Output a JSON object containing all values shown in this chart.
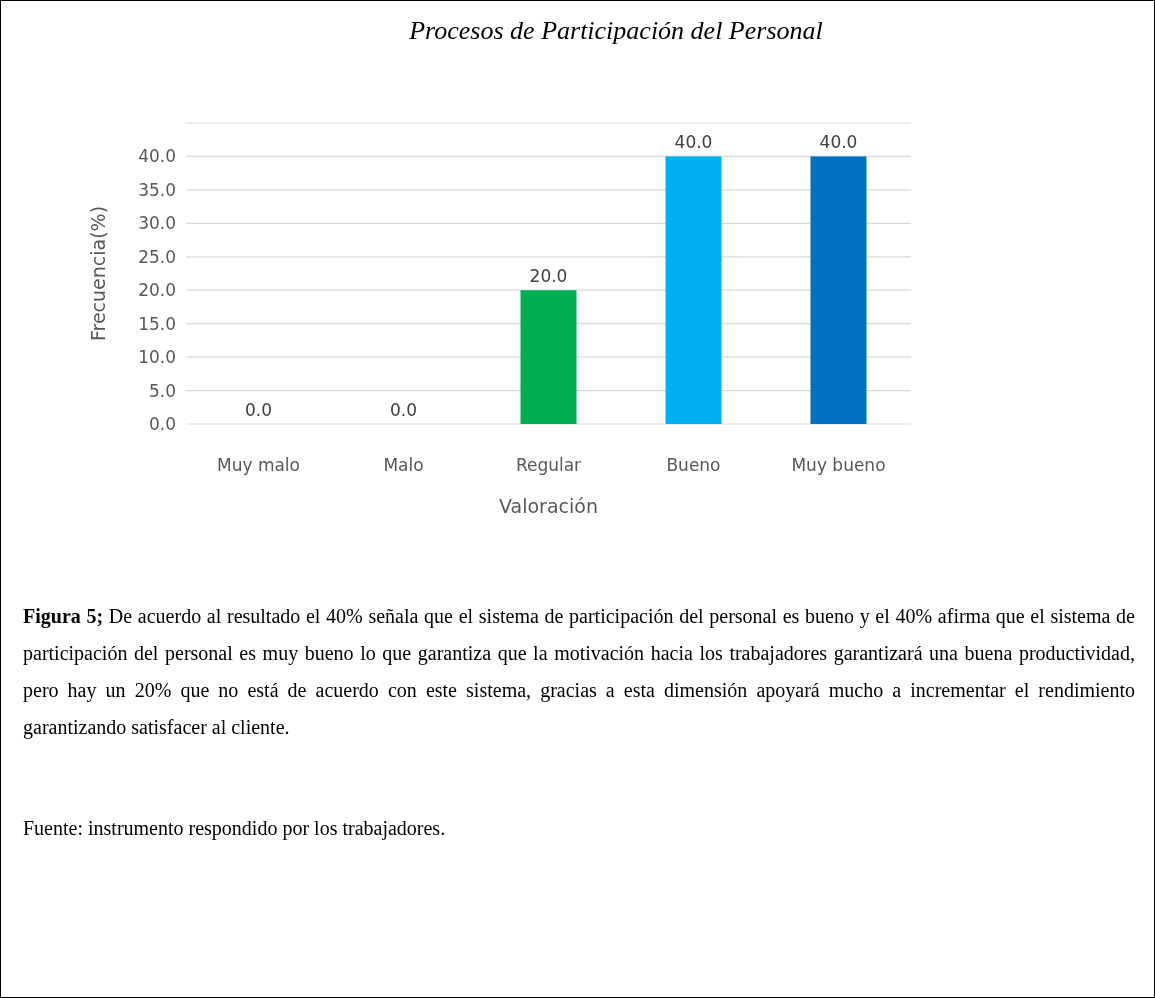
{
  "chart_data": {
    "type": "bar",
    "title": "Procesos de Participación del Personal",
    "xlabel": "Valoración",
    "ylabel": "Frecuencia(%)",
    "categories": [
      "Muy malo",
      "Malo",
      "Regular",
      "Bueno",
      "Muy bueno"
    ],
    "values": [
      0,
      0,
      20,
      40,
      40
    ],
    "colors": [
      "#c00000",
      "#bf9000",
      "#00b050",
      "#00b0f0",
      "#0070c0"
    ],
    "value_labels": [
      "0.0",
      "0.0",
      "20.0",
      "40.0",
      "40.0"
    ],
    "ylim": [
      0,
      45
    ],
    "yticks": [
      {
        "value": 0,
        "label": "0.0"
      },
      {
        "value": 5,
        "label": "5.0"
      },
      {
        "value": 10,
        "label": "10.0"
      },
      {
        "value": 15,
        "label": "15.0"
      },
      {
        "value": 20,
        "label": "20.0"
      },
      {
        "value": 25,
        "label": "25.0"
      },
      {
        "value": 30,
        "label": "30.0"
      },
      {
        "value": 35,
        "label": "35.0"
      },
      {
        "value": 40,
        "label": "40.0"
      },
      {
        "value": 45,
        "label": null
      }
    ],
    "grid": "y",
    "annotations": [
      "Figura 5; De acuerdo al resultado el 40% señala que el sistema de participación del personal es bueno y el 40% afirma que el sistema de participación del personal es muy bueno lo que garantiza que la motivación hacia los trabajadores garantizará una buena productividad, pero hay un 20% que no está de acuerdo con este sistema, gracias a esta dimensión apoyará mucho a incrementar el rendimiento garantizando satisfacer al cliente.",
      "Fuente: instrumento respondido por los trabajadores."
    ]
  }
}
